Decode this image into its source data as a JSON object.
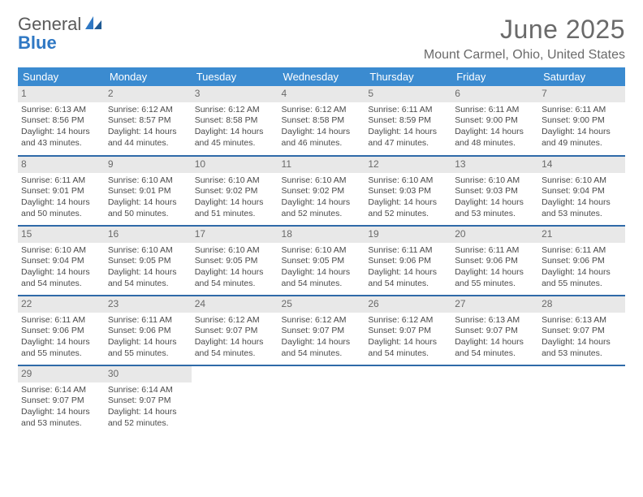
{
  "brand": {
    "line1": "General",
    "line2": "Blue"
  },
  "colors": {
    "header_bg": "#3b8bd0",
    "week_divider": "#2f6aa8",
    "daynum_bg": "#e8e8e8",
    "text": "#4a4a4a",
    "title": "#6a6a6a",
    "brand_blue": "#2f78c4"
  },
  "title": "June 2025",
  "location": "Mount Carmel, Ohio, United States",
  "weekdays": [
    "Sunday",
    "Monday",
    "Tuesday",
    "Wednesday",
    "Thursday",
    "Friday",
    "Saturday"
  ],
  "weeks": [
    [
      {
        "n": "1",
        "sr": "6:13 AM",
        "ss": "8:56 PM",
        "dl": "14 hours and 43 minutes."
      },
      {
        "n": "2",
        "sr": "6:12 AM",
        "ss": "8:57 PM",
        "dl": "14 hours and 44 minutes."
      },
      {
        "n": "3",
        "sr": "6:12 AM",
        "ss": "8:58 PM",
        "dl": "14 hours and 45 minutes."
      },
      {
        "n": "4",
        "sr": "6:12 AM",
        "ss": "8:58 PM",
        "dl": "14 hours and 46 minutes."
      },
      {
        "n": "5",
        "sr": "6:11 AM",
        "ss": "8:59 PM",
        "dl": "14 hours and 47 minutes."
      },
      {
        "n": "6",
        "sr": "6:11 AM",
        "ss": "9:00 PM",
        "dl": "14 hours and 48 minutes."
      },
      {
        "n": "7",
        "sr": "6:11 AM",
        "ss": "9:00 PM",
        "dl": "14 hours and 49 minutes."
      }
    ],
    [
      {
        "n": "8",
        "sr": "6:11 AM",
        "ss": "9:01 PM",
        "dl": "14 hours and 50 minutes."
      },
      {
        "n": "9",
        "sr": "6:10 AM",
        "ss": "9:01 PM",
        "dl": "14 hours and 50 minutes."
      },
      {
        "n": "10",
        "sr": "6:10 AM",
        "ss": "9:02 PM",
        "dl": "14 hours and 51 minutes."
      },
      {
        "n": "11",
        "sr": "6:10 AM",
        "ss": "9:02 PM",
        "dl": "14 hours and 52 minutes."
      },
      {
        "n": "12",
        "sr": "6:10 AM",
        "ss": "9:03 PM",
        "dl": "14 hours and 52 minutes."
      },
      {
        "n": "13",
        "sr": "6:10 AM",
        "ss": "9:03 PM",
        "dl": "14 hours and 53 minutes."
      },
      {
        "n": "14",
        "sr": "6:10 AM",
        "ss": "9:04 PM",
        "dl": "14 hours and 53 minutes."
      }
    ],
    [
      {
        "n": "15",
        "sr": "6:10 AM",
        "ss": "9:04 PM",
        "dl": "14 hours and 54 minutes."
      },
      {
        "n": "16",
        "sr": "6:10 AM",
        "ss": "9:05 PM",
        "dl": "14 hours and 54 minutes."
      },
      {
        "n": "17",
        "sr": "6:10 AM",
        "ss": "9:05 PM",
        "dl": "14 hours and 54 minutes."
      },
      {
        "n": "18",
        "sr": "6:10 AM",
        "ss": "9:05 PM",
        "dl": "14 hours and 54 minutes."
      },
      {
        "n": "19",
        "sr": "6:11 AM",
        "ss": "9:06 PM",
        "dl": "14 hours and 54 minutes."
      },
      {
        "n": "20",
        "sr": "6:11 AM",
        "ss": "9:06 PM",
        "dl": "14 hours and 55 minutes."
      },
      {
        "n": "21",
        "sr": "6:11 AM",
        "ss": "9:06 PM",
        "dl": "14 hours and 55 minutes."
      }
    ],
    [
      {
        "n": "22",
        "sr": "6:11 AM",
        "ss": "9:06 PM",
        "dl": "14 hours and 55 minutes."
      },
      {
        "n": "23",
        "sr": "6:11 AM",
        "ss": "9:06 PM",
        "dl": "14 hours and 55 minutes."
      },
      {
        "n": "24",
        "sr": "6:12 AM",
        "ss": "9:07 PM",
        "dl": "14 hours and 54 minutes."
      },
      {
        "n": "25",
        "sr": "6:12 AM",
        "ss": "9:07 PM",
        "dl": "14 hours and 54 minutes."
      },
      {
        "n": "26",
        "sr": "6:12 AM",
        "ss": "9:07 PM",
        "dl": "14 hours and 54 minutes."
      },
      {
        "n": "27",
        "sr": "6:13 AM",
        "ss": "9:07 PM",
        "dl": "14 hours and 54 minutes."
      },
      {
        "n": "28",
        "sr": "6:13 AM",
        "ss": "9:07 PM",
        "dl": "14 hours and 53 minutes."
      }
    ],
    [
      {
        "n": "29",
        "sr": "6:14 AM",
        "ss": "9:07 PM",
        "dl": "14 hours and 53 minutes."
      },
      {
        "n": "30",
        "sr": "6:14 AM",
        "ss": "9:07 PM",
        "dl": "14 hours and 52 minutes."
      },
      null,
      null,
      null,
      null,
      null
    ]
  ],
  "labels": {
    "sunrise": "Sunrise:",
    "sunset": "Sunset:",
    "daylight": "Daylight:"
  }
}
